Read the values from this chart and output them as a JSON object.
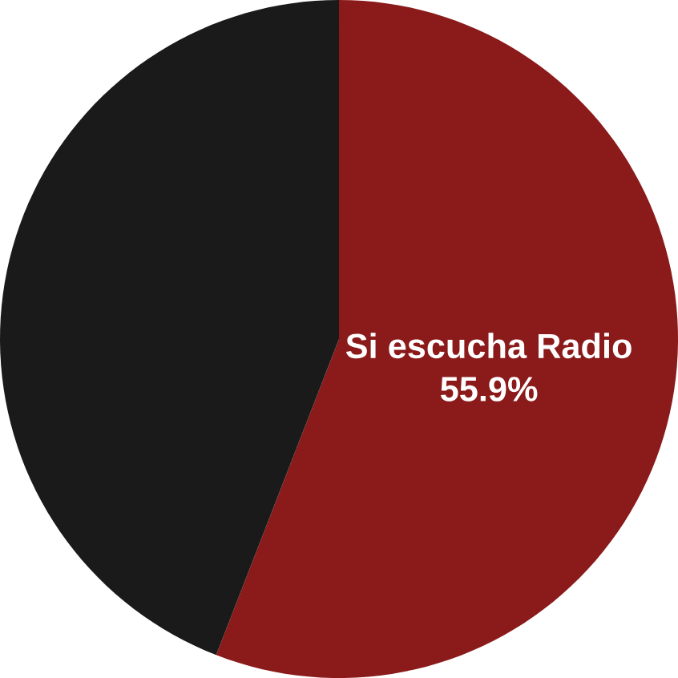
{
  "chart_data": {
    "type": "pie",
    "categories": [
      "Si escucha Radio",
      null
    ],
    "values": [
      55.9,
      44.1
    ],
    "colors": [
      "#8b1a1a",
      "#1a1a1a"
    ],
    "value_labels": [
      "55.9%",
      null
    ]
  }
}
